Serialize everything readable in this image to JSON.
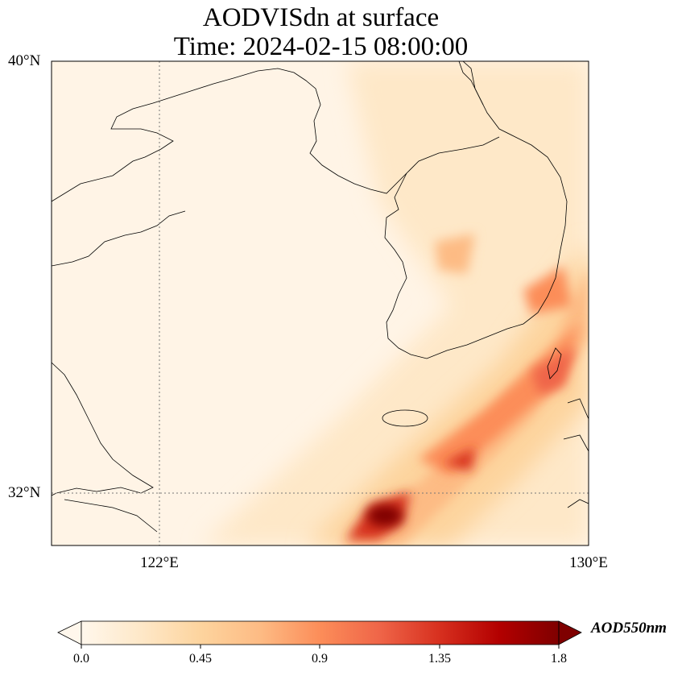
{
  "title": {
    "line1": "AODVISdn at surface",
    "line2": "Time: 2024-02-15 08:00:00"
  },
  "map": {
    "extent": {
      "lon_min": 120,
      "lon_max": 130,
      "lat_min": 31,
      "lat_max": 40
    },
    "lat_labels": [
      "40°N",
      "32°N"
    ],
    "lon_labels": [
      "122°E",
      "130°E"
    ],
    "gridlines": {
      "lon": [
        122
      ],
      "lat": [
        32
      ]
    }
  },
  "colorbar": {
    "label": "AOD550nm",
    "ticks": [
      "0.0",
      "0.45",
      "0.9",
      "1.35",
      "1.8"
    ],
    "range": [
      0,
      1.8
    ],
    "extend": "both",
    "colormap": [
      "#fff7ec",
      "#fee8c8",
      "#fdd49e",
      "#fdbb84",
      "#fc8d59",
      "#ef6548",
      "#d7301f",
      "#b30000",
      "#7f0000"
    ]
  }
}
